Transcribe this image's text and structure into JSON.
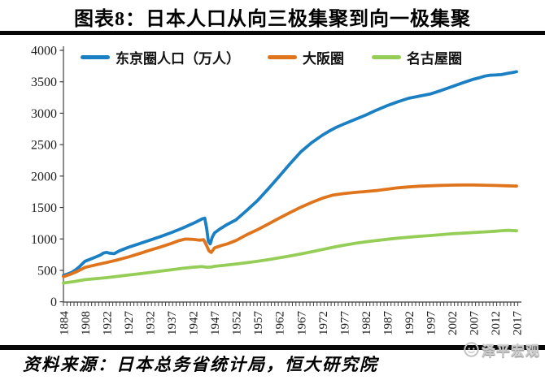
{
  "title": "图表8：日本人口从向三极集聚到向一极集聚",
  "source_note": "资料来源：日本总务省统计局，恒大研究院",
  "watermark": "泽平宏观",
  "colors": {
    "tokyo": "#1b7fc4",
    "osaka": "#e0741c",
    "nagoya": "#95ce57",
    "axis": "#3f3f3f",
    "tick_label": "#1a1a1a"
  },
  "chart_data": {
    "type": "line",
    "title": "",
    "xlabel": "",
    "ylabel": "",
    "unit": "万人",
    "ylim": [
      0,
      4000
    ],
    "y_ticks": [
      0,
      500,
      1000,
      1500,
      2000,
      2500,
      3000,
      3500,
      4000
    ],
    "grid": false,
    "legend_position": "top",
    "x_labels": [
      "1884",
      "1908",
      "1922",
      "1927",
      "1932",
      "1937",
      "1942",
      "1947",
      "1952",
      "1957",
      "1962",
      "1967",
      "1972",
      "1977",
      "1982",
      "1987",
      "1992",
      "1997",
      "2002",
      "2007",
      "2012",
      "2017"
    ],
    "x_note": "points use fractional positions on the equally-spaced label axis (0 = 1884, 21 = 2017)",
    "series": [
      {
        "name": "东京圈人口（万人）",
        "color": "#1b7fc4",
        "points": [
          [
            0,
            420
          ],
          [
            0.18,
            442
          ],
          [
            0.38,
            468
          ],
          [
            0.55,
            505
          ],
          [
            0.72,
            552
          ],
          [
            0.88,
            606
          ],
          [
            1,
            645
          ],
          [
            1.2,
            672
          ],
          [
            1.45,
            706
          ],
          [
            1.7,
            742
          ],
          [
            1.85,
            775
          ],
          [
            2,
            786
          ],
          [
            2.15,
            772
          ],
          [
            2.35,
            766
          ],
          [
            2.6,
            812
          ],
          [
            3,
            865
          ],
          [
            3.5,
            922
          ],
          [
            4,
            980
          ],
          [
            4.5,
            1038
          ],
          [
            5,
            1100
          ],
          [
            5.5,
            1170
          ],
          [
            6,
            1245
          ],
          [
            6.25,
            1288
          ],
          [
            6.45,
            1322
          ],
          [
            6.55,
            1330
          ],
          [
            6.63,
            1180
          ],
          [
            6.72,
            960
          ],
          [
            6.8,
            922
          ],
          [
            6.9,
            1030
          ],
          [
            7,
            1095
          ],
          [
            7.25,
            1158
          ],
          [
            7.6,
            1232
          ],
          [
            8,
            1305
          ],
          [
            8.5,
            1455
          ],
          [
            9,
            1612
          ],
          [
            9.5,
            1800
          ],
          [
            10,
            1995
          ],
          [
            10.5,
            2195
          ],
          [
            11,
            2385
          ],
          [
            11.5,
            2530
          ],
          [
            12,
            2650
          ],
          [
            12.3,
            2712
          ],
          [
            12.6,
            2768
          ],
          [
            13,
            2828
          ],
          [
            13.5,
            2900
          ],
          [
            14,
            2968
          ],
          [
            14.5,
            3048
          ],
          [
            15,
            3120
          ],
          [
            15.5,
            3182
          ],
          [
            16,
            3238
          ],
          [
            16.5,
            3272
          ],
          [
            17,
            3305
          ],
          [
            17.5,
            3362
          ],
          [
            18,
            3422
          ],
          [
            18.5,
            3482
          ],
          [
            19,
            3540
          ],
          [
            19.3,
            3566
          ],
          [
            19.55,
            3592
          ],
          [
            19.75,
            3604
          ],
          [
            20,
            3608
          ],
          [
            20.3,
            3614
          ],
          [
            20.6,
            3634
          ],
          [
            20.8,
            3646
          ],
          [
            21,
            3660
          ]
        ]
      },
      {
        "name": "大阪圈",
        "color": "#e0741c",
        "points": [
          [
            0,
            400
          ],
          [
            0.3,
            435
          ],
          [
            0.6,
            478
          ],
          [
            0.85,
            520
          ],
          [
            1,
            548
          ],
          [
            1.5,
            588
          ],
          [
            2,
            625
          ],
          [
            2.5,
            667
          ],
          [
            3,
            712
          ],
          [
            3.5,
            765
          ],
          [
            4,
            820
          ],
          [
            4.5,
            872
          ],
          [
            5,
            928
          ],
          [
            5.35,
            972
          ],
          [
            5.65,
            998
          ],
          [
            6,
            993
          ],
          [
            6.3,
            980
          ],
          [
            6.5,
            988
          ],
          [
            6.62,
            905
          ],
          [
            6.75,
            808
          ],
          [
            6.85,
            785
          ],
          [
            7,
            858
          ],
          [
            7.3,
            892
          ],
          [
            7.6,
            922
          ],
          [
            8,
            975
          ],
          [
            8.5,
            1068
          ],
          [
            9,
            1148
          ],
          [
            9.5,
            1238
          ],
          [
            10,
            1330
          ],
          [
            10.5,
            1420
          ],
          [
            11,
            1505
          ],
          [
            11.5,
            1580
          ],
          [
            12,
            1648
          ],
          [
            12.5,
            1698
          ],
          [
            13,
            1722
          ],
          [
            13.5,
            1740
          ],
          [
            14,
            1754
          ],
          [
            14.5,
            1770
          ],
          [
            15,
            1792
          ],
          [
            15.5,
            1813
          ],
          [
            16,
            1828
          ],
          [
            16.5,
            1839
          ],
          [
            17,
            1846
          ],
          [
            17.5,
            1852
          ],
          [
            18,
            1856
          ],
          [
            18.5,
            1858
          ],
          [
            19,
            1858
          ],
          [
            19.5,
            1855
          ],
          [
            20,
            1851
          ],
          [
            20.5,
            1846
          ],
          [
            21,
            1840
          ]
        ]
      },
      {
        "name": "名古屋圈",
        "color": "#95ce57",
        "points": [
          [
            0,
            300
          ],
          [
            0.5,
            322
          ],
          [
            1,
            352
          ],
          [
            1.5,
            368
          ],
          [
            2,
            383
          ],
          [
            2.5,
            404
          ],
          [
            3,
            425
          ],
          [
            3.5,
            445
          ],
          [
            4,
            466
          ],
          [
            4.5,
            488
          ],
          [
            5,
            510
          ],
          [
            5.5,
            532
          ],
          [
            6,
            550
          ],
          [
            6.4,
            560
          ],
          [
            6.65,
            550
          ],
          [
            6.85,
            553
          ],
          [
            7,
            565
          ],
          [
            7.5,
            583
          ],
          [
            8,
            602
          ],
          [
            8.5,
            623
          ],
          [
            9,
            646
          ],
          [
            9.5,
            672
          ],
          [
            10,
            700
          ],
          [
            10.5,
            730
          ],
          [
            11,
            762
          ],
          [
            11.5,
            796
          ],
          [
            12,
            832
          ],
          [
            12.5,
            868
          ],
          [
            13,
            900
          ],
          [
            13.5,
            928
          ],
          [
            14,
            953
          ],
          [
            14.5,
            975
          ],
          [
            15,
            995
          ],
          [
            15.5,
            1012
          ],
          [
            16,
            1028
          ],
          [
            16.5,
            1042
          ],
          [
            17,
            1054
          ],
          [
            17.5,
            1068
          ],
          [
            18,
            1082
          ],
          [
            18.5,
            1092
          ],
          [
            19,
            1102
          ],
          [
            19.5,
            1112
          ],
          [
            20,
            1122
          ],
          [
            20.3,
            1132
          ],
          [
            20.6,
            1136
          ],
          [
            21,
            1130
          ]
        ]
      }
    ]
  }
}
